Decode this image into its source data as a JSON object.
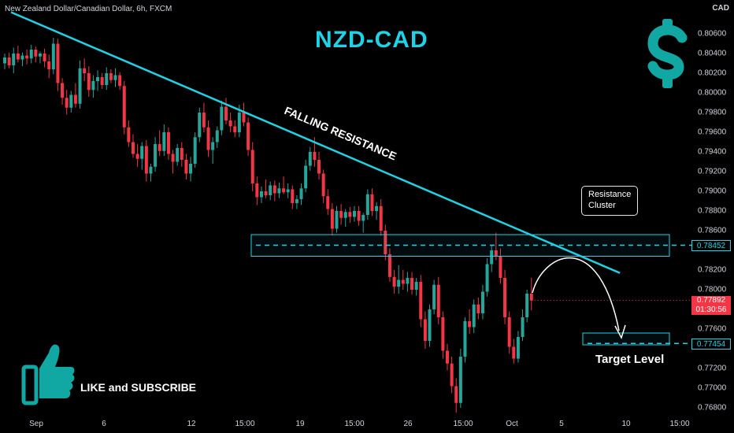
{
  "header": {
    "symbol": "New Zealand Dollar/Canadian Dollar, 6h, FXCM",
    "currency": "CAD"
  },
  "overlay": {
    "title": "NZD-CAD",
    "like_text": "LIKE and SUBSCRIBE",
    "trendline_label": "FALLING RESISTANCE",
    "callout_line1": "Resistance",
    "callout_line2": "Cluster",
    "target_label": "Target Level",
    "colors": {
      "accent": "#1fd3e6",
      "bull": "#26a69a",
      "bear": "#f23645",
      "icon": "#11a8a4"
    },
    "icons": [
      "dollar-icon",
      "thumbs-up-icon"
    ]
  },
  "price_tags": {
    "resistance": "0.78452",
    "target": "0.77454",
    "current_price": "0.77892",
    "countdown": "01:30:56"
  },
  "chart_data": {
    "type": "candlestick",
    "title": "NZD-CAD",
    "subtitle": "New Zealand Dollar/Canadian Dollar, 6h, FXCM",
    "y_axis_label": "CAD",
    "ylim": [
      0.7668,
      0.8072
    ],
    "x_ticks": [
      "Sep",
      "6",
      "12",
      "15:00",
      "19",
      "15:00",
      "26",
      "15:00",
      "Oct",
      "5",
      "10",
      "15:00"
    ],
    "y_ticks": [
      "0.80600",
      "0.80400",
      "0.80200",
      "0.80000",
      "0.79800",
      "0.79600",
      "0.79400",
      "0.79200",
      "0.79000",
      "0.78800",
      "0.78600",
      "0.78200",
      "0.78000",
      "0.77600",
      "0.77200",
      "0.77000",
      "0.76800"
    ],
    "candles": [
      [
        0.803,
        0.804,
        0.8024,
        0.8036
      ],
      [
        0.8036,
        0.8041,
        0.8025,
        0.8028
      ],
      [
        0.8028,
        0.8046,
        0.802,
        0.804
      ],
      [
        0.804,
        0.8048,
        0.8031,
        0.8034
      ],
      [
        0.8034,
        0.8041,
        0.8027,
        0.8038
      ],
      [
        0.8038,
        0.8044,
        0.8029,
        0.8035
      ],
      [
        0.8035,
        0.8049,
        0.803,
        0.8044
      ],
      [
        0.8044,
        0.8047,
        0.8031,
        0.8037
      ],
      [
        0.8037,
        0.8042,
        0.803,
        0.804
      ],
      [
        0.804,
        0.8045,
        0.8026,
        0.8032
      ],
      [
        0.8032,
        0.8039,
        0.8015,
        0.8024
      ],
      [
        0.8024,
        0.8056,
        0.8019,
        0.805
      ],
      [
        0.805,
        0.8055,
        0.8002,
        0.801
      ],
      [
        0.801,
        0.8015,
        0.7988,
        0.7995
      ],
      [
        0.7995,
        0.8003,
        0.7978,
        0.7985
      ],
      [
        0.7985,
        0.8002,
        0.798,
        0.7998
      ],
      [
        0.7998,
        0.801,
        0.7985,
        0.7989
      ],
      [
        0.7989,
        0.8033,
        0.7984,
        0.8025
      ],
      [
        0.8025,
        0.8035,
        0.8012,
        0.802
      ],
      [
        0.802,
        0.8027,
        0.7996,
        0.8003
      ],
      [
        0.8003,
        0.8018,
        0.7995,
        0.8012
      ],
      [
        0.8012,
        0.8023,
        0.8002,
        0.8016
      ],
      [
        0.8016,
        0.802,
        0.8004,
        0.8008
      ],
      [
        0.8008,
        0.8026,
        0.8003,
        0.802
      ],
      [
        0.802,
        0.8024,
        0.801,
        0.8013
      ],
      [
        0.8013,
        0.8025,
        0.8006,
        0.8018
      ],
      [
        0.8018,
        0.8021,
        0.8003,
        0.8007
      ],
      [
        0.8007,
        0.8012,
        0.7958,
        0.7965
      ],
      [
        0.7965,
        0.7972,
        0.7945,
        0.795
      ],
      [
        0.795,
        0.7958,
        0.7934,
        0.7938
      ],
      [
        0.7938,
        0.7948,
        0.7925,
        0.7933
      ],
      [
        0.7933,
        0.795,
        0.7922,
        0.7946
      ],
      [
        0.7946,
        0.7952,
        0.791,
        0.7918
      ],
      [
        0.7918,
        0.7928,
        0.791,
        0.7925
      ],
      [
        0.7925,
        0.7955,
        0.792,
        0.7948
      ],
      [
        0.7948,
        0.7962,
        0.7936,
        0.7941
      ],
      [
        0.7941,
        0.7968,
        0.7936,
        0.796
      ],
      [
        0.796,
        0.7965,
        0.7932,
        0.7938
      ],
      [
        0.7938,
        0.7942,
        0.7918,
        0.793
      ],
      [
        0.793,
        0.7948,
        0.7926,
        0.7944
      ],
      [
        0.7944,
        0.795,
        0.7925,
        0.7932
      ],
      [
        0.7932,
        0.7938,
        0.7912,
        0.7918
      ],
      [
        0.7918,
        0.7935,
        0.791,
        0.7928
      ],
      [
        0.7928,
        0.796,
        0.7924,
        0.7955
      ],
      [
        0.7955,
        0.7985,
        0.795,
        0.798
      ],
      [
        0.798,
        0.799,
        0.796,
        0.7965
      ],
      [
        0.7965,
        0.7972,
        0.7935,
        0.7942
      ],
      [
        0.7942,
        0.7955,
        0.7928,
        0.795
      ],
      [
        0.795,
        0.7966,
        0.7944,
        0.7962
      ],
      [
        0.7962,
        0.7992,
        0.7957,
        0.7986
      ],
      [
        0.7986,
        0.7995,
        0.7968,
        0.7972
      ],
      [
        0.7972,
        0.798,
        0.796,
        0.7966
      ],
      [
        0.7966,
        0.7972,
        0.7955,
        0.796
      ],
      [
        0.796,
        0.7988,
        0.7955,
        0.798
      ],
      [
        0.798,
        0.799,
        0.7966,
        0.797
      ],
      [
        0.797,
        0.7975,
        0.7936,
        0.7942
      ],
      [
        0.7942,
        0.795,
        0.79,
        0.7908
      ],
      [
        0.7908,
        0.7915,
        0.7886,
        0.7894
      ],
      [
        0.7894,
        0.7905,
        0.7888,
        0.79
      ],
      [
        0.79,
        0.7912,
        0.7893,
        0.7896
      ],
      [
        0.7896,
        0.791,
        0.7891,
        0.7906
      ],
      [
        0.7906,
        0.7911,
        0.789,
        0.7898
      ],
      [
        0.7898,
        0.7909,
        0.7893,
        0.7903
      ],
      [
        0.7903,
        0.7915,
        0.7897,
        0.7899
      ],
      [
        0.7899,
        0.7908,
        0.7893,
        0.7902
      ],
      [
        0.7902,
        0.7906,
        0.7882,
        0.7888
      ],
      [
        0.7888,
        0.7896,
        0.7882,
        0.7892
      ],
      [
        0.7892,
        0.7908,
        0.7886,
        0.7903
      ],
      [
        0.7903,
        0.7932,
        0.7899,
        0.7926
      ],
      [
        0.7926,
        0.7945,
        0.7921,
        0.794
      ],
      [
        0.794,
        0.7955,
        0.7925,
        0.7932
      ],
      [
        0.7932,
        0.794,
        0.7912,
        0.7918
      ],
      [
        0.7918,
        0.7922,
        0.7888,
        0.7895
      ],
      [
        0.7895,
        0.7902,
        0.7876,
        0.7882
      ],
      [
        0.7882,
        0.7888,
        0.7855,
        0.7862
      ],
      [
        0.7862,
        0.7885,
        0.7858,
        0.788
      ],
      [
        0.788,
        0.7887,
        0.7866,
        0.7873
      ],
      [
        0.7873,
        0.7882,
        0.7864,
        0.7879
      ],
      [
        0.7879,
        0.7884,
        0.7868,
        0.7874
      ],
      [
        0.7874,
        0.7885,
        0.7869,
        0.788
      ],
      [
        0.788,
        0.7885,
        0.7865,
        0.787
      ],
      [
        0.787,
        0.7878,
        0.7858,
        0.7876
      ],
      [
        0.7876,
        0.7902,
        0.7871,
        0.7897
      ],
      [
        0.7897,
        0.7903,
        0.7875,
        0.788
      ],
      [
        0.788,
        0.7889,
        0.7871,
        0.7885
      ],
      [
        0.7885,
        0.7892,
        0.7855,
        0.786
      ],
      [
        0.786,
        0.7866,
        0.783,
        0.7836
      ],
      [
        0.7836,
        0.7842,
        0.7808,
        0.7813
      ],
      [
        0.7813,
        0.782,
        0.7796,
        0.7803
      ],
      [
        0.7803,
        0.7825,
        0.7796,
        0.781
      ],
      [
        0.781,
        0.782,
        0.78,
        0.7806
      ],
      [
        0.7806,
        0.7818,
        0.7798,
        0.7812
      ],
      [
        0.7812,
        0.7818,
        0.7795,
        0.78
      ],
      [
        0.78,
        0.7812,
        0.7794,
        0.7808
      ],
      [
        0.7808,
        0.7815,
        0.7762,
        0.777
      ],
      [
        0.777,
        0.7778,
        0.774,
        0.7748
      ],
      [
        0.7748,
        0.7785,
        0.7742,
        0.778
      ],
      [
        0.778,
        0.781,
        0.7775,
        0.7805
      ],
      [
        0.7805,
        0.7813,
        0.7765,
        0.7772
      ],
      [
        0.7772,
        0.7778,
        0.773,
        0.7738
      ],
      [
        0.7738,
        0.7745,
        0.7718,
        0.7725
      ],
      [
        0.7725,
        0.7732,
        0.7695,
        0.7702
      ],
      [
        0.7702,
        0.771,
        0.7675,
        0.7685
      ],
      [
        0.7685,
        0.774,
        0.768,
        0.7732
      ],
      [
        0.7732,
        0.7772,
        0.7726,
        0.7768
      ],
      [
        0.7768,
        0.778,
        0.7755,
        0.7762
      ],
      [
        0.7762,
        0.779,
        0.7756,
        0.7785
      ],
      [
        0.7785,
        0.7792,
        0.777,
        0.7776
      ],
      [
        0.7776,
        0.7805,
        0.777,
        0.7798
      ],
      [
        0.7798,
        0.7832,
        0.7793,
        0.7826
      ],
      [
        0.7826,
        0.7845,
        0.7818,
        0.784
      ],
      [
        0.784,
        0.7858,
        0.783,
        0.7834
      ],
      [
        0.7834,
        0.7842,
        0.7806,
        0.7812
      ],
      [
        0.7812,
        0.782,
        0.7765,
        0.7772
      ],
      [
        0.7772,
        0.7778,
        0.7735,
        0.7742
      ],
      [
        0.7742,
        0.775,
        0.7725,
        0.773
      ],
      [
        0.773,
        0.7758,
        0.7726,
        0.7752
      ],
      [
        0.7752,
        0.778,
        0.7748,
        0.7772
      ],
      [
        0.7772,
        0.78,
        0.7767,
        0.7796
      ],
      [
        0.7796,
        0.7812,
        0.7779,
        0.7789
      ]
    ],
    "trendline": {
      "label": "FALLING RESISTANCE",
      "from": [
        0,
        0.8082
      ],
      "to": [
        139,
        0.7817
      ]
    },
    "resistance_zone": {
      "low": 0.7834,
      "high": 0.7856,
      "level": 0.78452
    },
    "target_zone": {
      "low": 0.7744,
      "high": 0.7756,
      "level": 0.77454
    },
    "current_price": 0.77892
  }
}
